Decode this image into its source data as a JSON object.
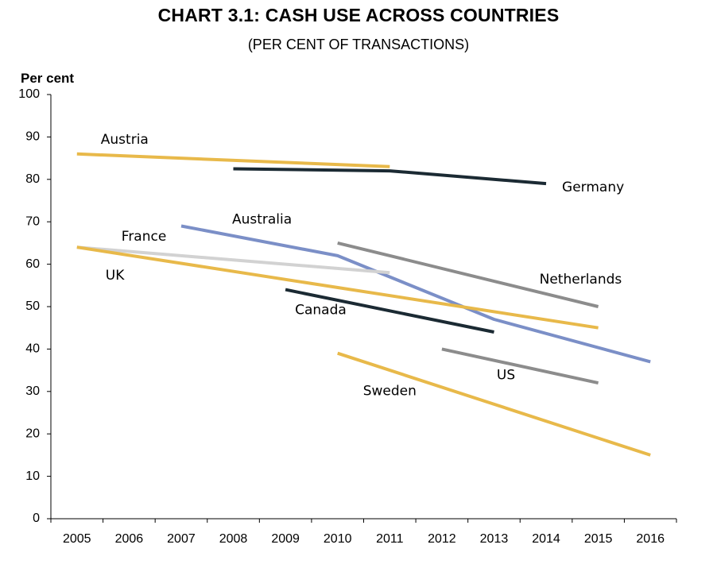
{
  "title": "CHART 3.1: CASH USE ACROSS COUNTRIES",
  "subtitle": "(PER CENT OF TRANSACTIONS)",
  "chart_data": {
    "type": "line",
    "ylabel": "Per cent",
    "ylim": [
      0,
      100
    ],
    "yticks": [
      "0",
      "10",
      "20",
      "30",
      "40",
      "50",
      "60",
      "70",
      "80",
      "90",
      "100"
    ],
    "categories": [
      "2005",
      "2006",
      "2007",
      "2008",
      "2009",
      "2010",
      "2011",
      "2012",
      "2013",
      "2014",
      "2015",
      "2016"
    ],
    "grid": false,
    "legend": "inline labels",
    "series": [
      {
        "name": "Austria",
        "color": "#e8b94a",
        "points": [
          [
            "2005",
            86
          ],
          [
            "2011",
            83
          ]
        ]
      },
      {
        "name": "Germany",
        "color": "#1b2a33",
        "points": [
          [
            "2008",
            82.5
          ],
          [
            "2011",
            82
          ],
          [
            "2014",
            79
          ]
        ]
      },
      {
        "name": "Australia",
        "color": "#7b8fc7",
        "points": [
          [
            "2007",
            69
          ],
          [
            "2010",
            62
          ],
          [
            "2013",
            47
          ],
          [
            "2016",
            37
          ]
        ]
      },
      {
        "name": "France",
        "color": "#d2d2d2",
        "points": [
          [
            "2005",
            64
          ],
          [
            "2011",
            58
          ]
        ]
      },
      {
        "name": "UK",
        "color": "#e8b94a",
        "points": [
          [
            "2005",
            64
          ],
          [
            "2015",
            45
          ]
        ]
      },
      {
        "name": "Netherlands",
        "color": "#8c8c8c",
        "points": [
          [
            "2010",
            65
          ],
          [
            "2015",
            50
          ]
        ]
      },
      {
        "name": "Canada",
        "color": "#1b2a33",
        "points": [
          [
            "2009",
            54
          ],
          [
            "2013",
            44
          ]
        ]
      },
      {
        "name": "US",
        "color": "#8c8c8c",
        "points": [
          [
            "2012",
            40
          ],
          [
            "2015",
            32
          ]
        ]
      },
      {
        "name": "Sweden",
        "color": "#e8b94a",
        "points": [
          [
            "2010",
            39
          ],
          [
            "2016",
            15
          ]
        ]
      }
    ]
  }
}
